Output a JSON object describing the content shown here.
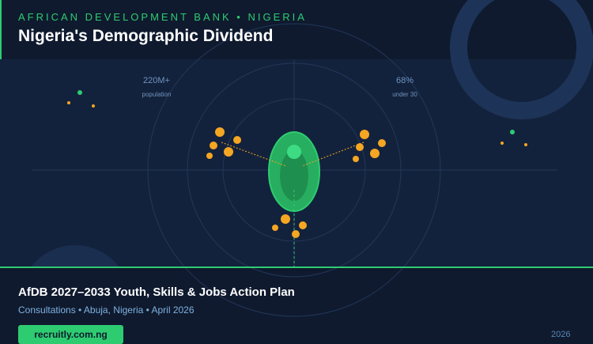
{
  "header": {
    "eyebrow": "AFRICAN DEVELOPMENT BANK • NIGERIA",
    "title": "Nigeria's Demographic Dividend"
  },
  "stats": [
    {
      "value": "220M+",
      "label": "population"
    },
    {
      "value": "68%",
      "label": "under 30"
    }
  ],
  "footer": {
    "title": "AfDB 2027–2033 Youth, Skills & Jobs Action Plan",
    "subtitle": "Consultations • Abuja, Nigeria • April 2026",
    "button": "recruitly.com.ng",
    "year": "2026"
  }
}
